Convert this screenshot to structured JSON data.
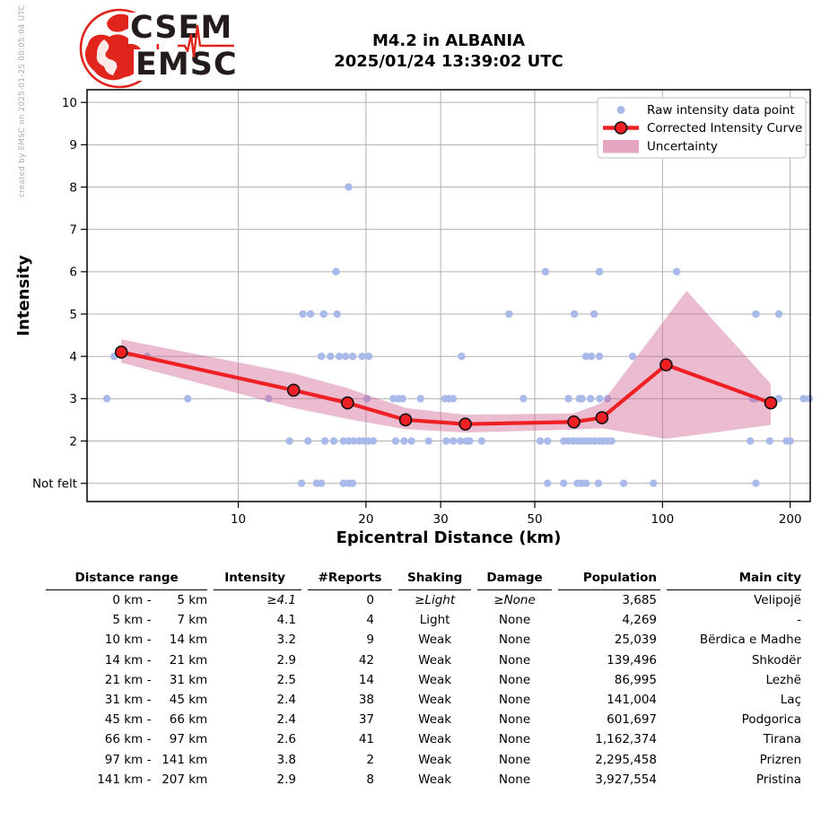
{
  "credit": "created by EMSC on 2025-01-25 00:05:04 UTC",
  "logo": {
    "top": "CSEM",
    "bottom": "EMSC"
  },
  "header": {
    "title_line1": "M4.2 in ALBANIA",
    "title_line2": "2025/01/24 13:39:02 UTC"
  },
  "chart_data": {
    "type": "scatter",
    "title": "M4.2 in ALBANIA 2025/01/24 13:39:02 UTC",
    "xlabel": "Epicentral Distance (km)",
    "ylabel": "Intensity",
    "x_scale": "log",
    "xlim": [
      4.4,
      223
    ],
    "ylim": [
      0.57,
      10.3
    ],
    "grid": true,
    "legend_position": "upper right",
    "x_ticks": [
      [
        10,
        "10"
      ],
      [
        20,
        "20"
      ],
      [
        30,
        "30"
      ],
      [
        50,
        "50"
      ],
      [
        100,
        "100"
      ],
      [
        200,
        "200"
      ]
    ],
    "y_ticks": [
      [
        10,
        "10"
      ],
      [
        9,
        "9"
      ],
      [
        8,
        "8"
      ],
      [
        7,
        "7"
      ],
      [
        6,
        "6"
      ],
      [
        5,
        "5"
      ],
      [
        4,
        "4"
      ],
      [
        3,
        "3"
      ],
      [
        2,
        "2"
      ],
      [
        1,
        "Not felt"
      ]
    ],
    "legend": [
      "Raw intensity data point",
      "Corrected Intensity Curve",
      "Uncertainty"
    ],
    "colors": {
      "raw": "#a9b9e9",
      "curve": "#ee2024",
      "band": "#d05c90",
      "grid": "#b0b0b0",
      "marker_edge": "#111111"
    },
    "raw_points": [
      [
        18.2,
        8
      ],
      [
        17,
        6
      ],
      [
        53,
        6
      ],
      [
        71,
        6
      ],
      [
        108,
        6
      ],
      [
        14.2,
        5
      ],
      [
        14.8,
        5
      ],
      [
        15.9,
        5
      ],
      [
        17.1,
        5
      ],
      [
        43.5,
        5
      ],
      [
        62,
        5
      ],
      [
        69,
        5
      ],
      [
        166,
        5
      ],
      [
        188,
        5
      ],
      [
        5.1,
        4
      ],
      [
        6.1,
        4
      ],
      [
        15.7,
        4
      ],
      [
        16.5,
        4
      ],
      [
        17.3,
        4
      ],
      [
        17.9,
        4
      ],
      [
        18.6,
        4
      ],
      [
        19.6,
        4
      ],
      [
        20.3,
        4
      ],
      [
        33.6,
        4
      ],
      [
        66,
        4
      ],
      [
        68,
        4
      ],
      [
        71,
        4
      ],
      [
        85,
        4
      ],
      [
        4.9,
        3
      ],
      [
        7.6,
        3
      ],
      [
        11.8,
        3
      ],
      [
        20.1,
        3
      ],
      [
        23.2,
        3
      ],
      [
        23.8,
        3
      ],
      [
        24.4,
        3
      ],
      [
        26.9,
        3
      ],
      [
        30.7,
        3
      ],
      [
        31.4,
        3
      ],
      [
        32.1,
        3
      ],
      [
        47,
        3
      ],
      [
        60,
        3
      ],
      [
        63.7,
        3
      ],
      [
        64.6,
        3
      ],
      [
        67.7,
        3
      ],
      [
        71.1,
        3
      ],
      [
        74.2,
        3
      ],
      [
        163,
        3
      ],
      [
        166,
        3
      ],
      [
        188,
        3
      ],
      [
        215,
        3
      ],
      [
        222,
        3
      ],
      [
        13.2,
        2
      ],
      [
        14.6,
        2
      ],
      [
        16,
        2
      ],
      [
        16.8,
        2
      ],
      [
        17.7,
        2
      ],
      [
        18.2,
        2
      ],
      [
        18.7,
        2
      ],
      [
        19.3,
        2
      ],
      [
        19.8,
        2
      ],
      [
        20.3,
        2
      ],
      [
        20.8,
        2
      ],
      [
        23.5,
        2
      ],
      [
        24.6,
        2
      ],
      [
        25.6,
        2
      ],
      [
        28.1,
        2
      ],
      [
        30.9,
        2
      ],
      [
        32.1,
        2
      ],
      [
        33.4,
        2
      ],
      [
        34.5,
        2
      ],
      [
        35.1,
        2
      ],
      [
        37.5,
        2
      ],
      [
        51.5,
        2
      ],
      [
        53.6,
        2
      ],
      [
        58.5,
        2
      ],
      [
        60,
        2
      ],
      [
        61.5,
        2
      ],
      [
        63,
        2
      ],
      [
        64.5,
        2
      ],
      [
        66.1,
        2
      ],
      [
        67.7,
        2
      ],
      [
        69.4,
        2
      ],
      [
        71.1,
        2
      ],
      [
        72.5,
        2
      ],
      [
        74.2,
        2
      ],
      [
        75.9,
        2
      ],
      [
        161,
        2
      ],
      [
        179,
        2
      ],
      [
        196,
        2
      ],
      [
        200,
        2
      ],
      [
        14.1,
        1
      ],
      [
        15.3,
        1
      ],
      [
        15.7,
        1
      ],
      [
        17.7,
        1
      ],
      [
        18.2,
        1
      ],
      [
        18.6,
        1
      ],
      [
        53.6,
        1
      ],
      [
        58.5,
        1
      ],
      [
        63,
        1
      ],
      [
        64.5,
        1
      ],
      [
        66.1,
        1
      ],
      [
        70.6,
        1
      ],
      [
        81,
        1
      ],
      [
        95.2,
        1
      ],
      [
        166,
        1
      ]
    ],
    "corrected_curve": [
      [
        5.3,
        4.1
      ],
      [
        13.5,
        3.2
      ],
      [
        18.1,
        2.9
      ],
      [
        24.8,
        2.5
      ],
      [
        34.3,
        2.4
      ],
      [
        61.8,
        2.45
      ],
      [
        72,
        2.55
      ],
      [
        102,
        3.8
      ],
      [
        180,
        2.9
      ]
    ],
    "uncertainty_upper": [
      [
        5.3,
        4.4
      ],
      [
        13.5,
        3.6
      ],
      [
        18.1,
        3.25
      ],
      [
        24.8,
        2.78
      ],
      [
        34.3,
        2.62
      ],
      [
        61.8,
        2.65
      ],
      [
        72,
        2.9
      ],
      [
        114,
        5.55
      ],
      [
        180,
        3.35
      ]
    ],
    "uncertainty_lower": [
      [
        5.3,
        3.85
      ],
      [
        13.5,
        2.78
      ],
      [
        18.1,
        2.52
      ],
      [
        24.8,
        2.28
      ],
      [
        34.3,
        2.2
      ],
      [
        61.8,
        2.27
      ],
      [
        72,
        2.3
      ],
      [
        102,
        2.05
      ],
      [
        180,
        2.38
      ]
    ]
  },
  "table": {
    "headers": [
      "Distance range",
      "Intensity",
      "#Reports",
      "Shaking",
      "Damage",
      "Population",
      "Main city"
    ],
    "rows": [
      {
        "from": "0 km",
        "to": "5 km",
        "intensity": "≥4.1",
        "reports": "0",
        "shaking": "≥Light",
        "damage": "≥None",
        "population": "3,685",
        "city": "Velipojë",
        "italic": true
      },
      {
        "from": "5 km",
        "to": "7 km",
        "intensity": "4.1",
        "reports": "4",
        "shaking": "Light",
        "damage": "None",
        "population": "4,269",
        "city": "-",
        "italic": false
      },
      {
        "from": "10 km",
        "to": "14 km",
        "intensity": "3.2",
        "reports": "9",
        "shaking": "Weak",
        "damage": "None",
        "population": "25,039",
        "city": "Bërdica e Madhe",
        "italic": false
      },
      {
        "from": "14 km",
        "to": "21 km",
        "intensity": "2.9",
        "reports": "42",
        "shaking": "Weak",
        "damage": "None",
        "population": "139,496",
        "city": "Shkodër",
        "italic": false
      },
      {
        "from": "21 km",
        "to": "31 km",
        "intensity": "2.5",
        "reports": "14",
        "shaking": "Weak",
        "damage": "None",
        "population": "86,995",
        "city": "Lezhë",
        "italic": false
      },
      {
        "from": "31 km",
        "to": "45 km",
        "intensity": "2.4",
        "reports": "38",
        "shaking": "Weak",
        "damage": "None",
        "population": "141,004",
        "city": "Laç",
        "italic": false
      },
      {
        "from": "45 km",
        "to": "66 km",
        "intensity": "2.4",
        "reports": "37",
        "shaking": "Weak",
        "damage": "None",
        "population": "601,697",
        "city": "Podgorica",
        "italic": false
      },
      {
        "from": "66 km",
        "to": "97 km",
        "intensity": "2.6",
        "reports": "41",
        "shaking": "Weak",
        "damage": "None",
        "population": "1,162,374",
        "city": "Tirana",
        "italic": false
      },
      {
        "from": "97 km",
        "to": "141 km",
        "intensity": "3.8",
        "reports": "2",
        "shaking": "Weak",
        "damage": "None",
        "population": "2,295,458",
        "city": "Prizren",
        "italic": false
      },
      {
        "from": "141 km",
        "to": "207 km",
        "intensity": "2.9",
        "reports": "8",
        "shaking": "Weak",
        "damage": "None",
        "population": "3,927,554",
        "city": "Pristina",
        "italic": false
      }
    ]
  }
}
